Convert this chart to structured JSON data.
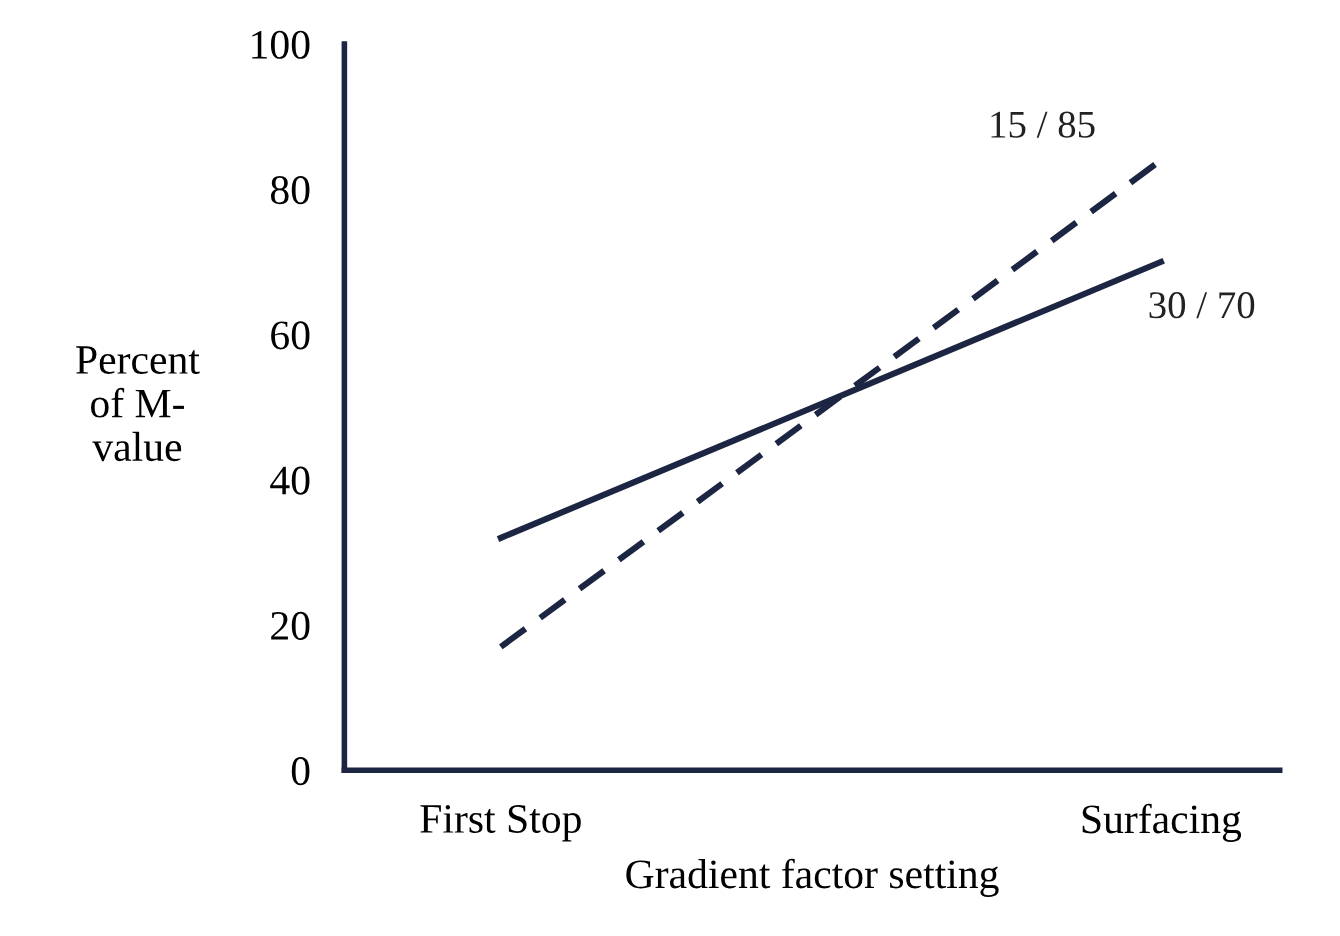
{
  "chart_data": {
    "type": "line",
    "xlabel": "Gradient factor setting",
    "ylabel": "Percent\nof M-\nvalue",
    "categories": [
      "First Stop",
      "Surfacing"
    ],
    "ylim": [
      0,
      100
    ],
    "yticks": [
      0,
      20,
      40,
      60,
      80,
      100
    ],
    "grid": false,
    "legend": false,
    "marker": "none",
    "series": [
      {
        "name": "30 / 70",
        "color": "#1c2541",
        "values": [
          32,
          70
        ],
        "line_style": "solid"
      },
      {
        "name": "15 / 85",
        "color": "#1c2541",
        "values": [
          17,
          84
        ],
        "line_style": "dashed"
      }
    ]
  }
}
